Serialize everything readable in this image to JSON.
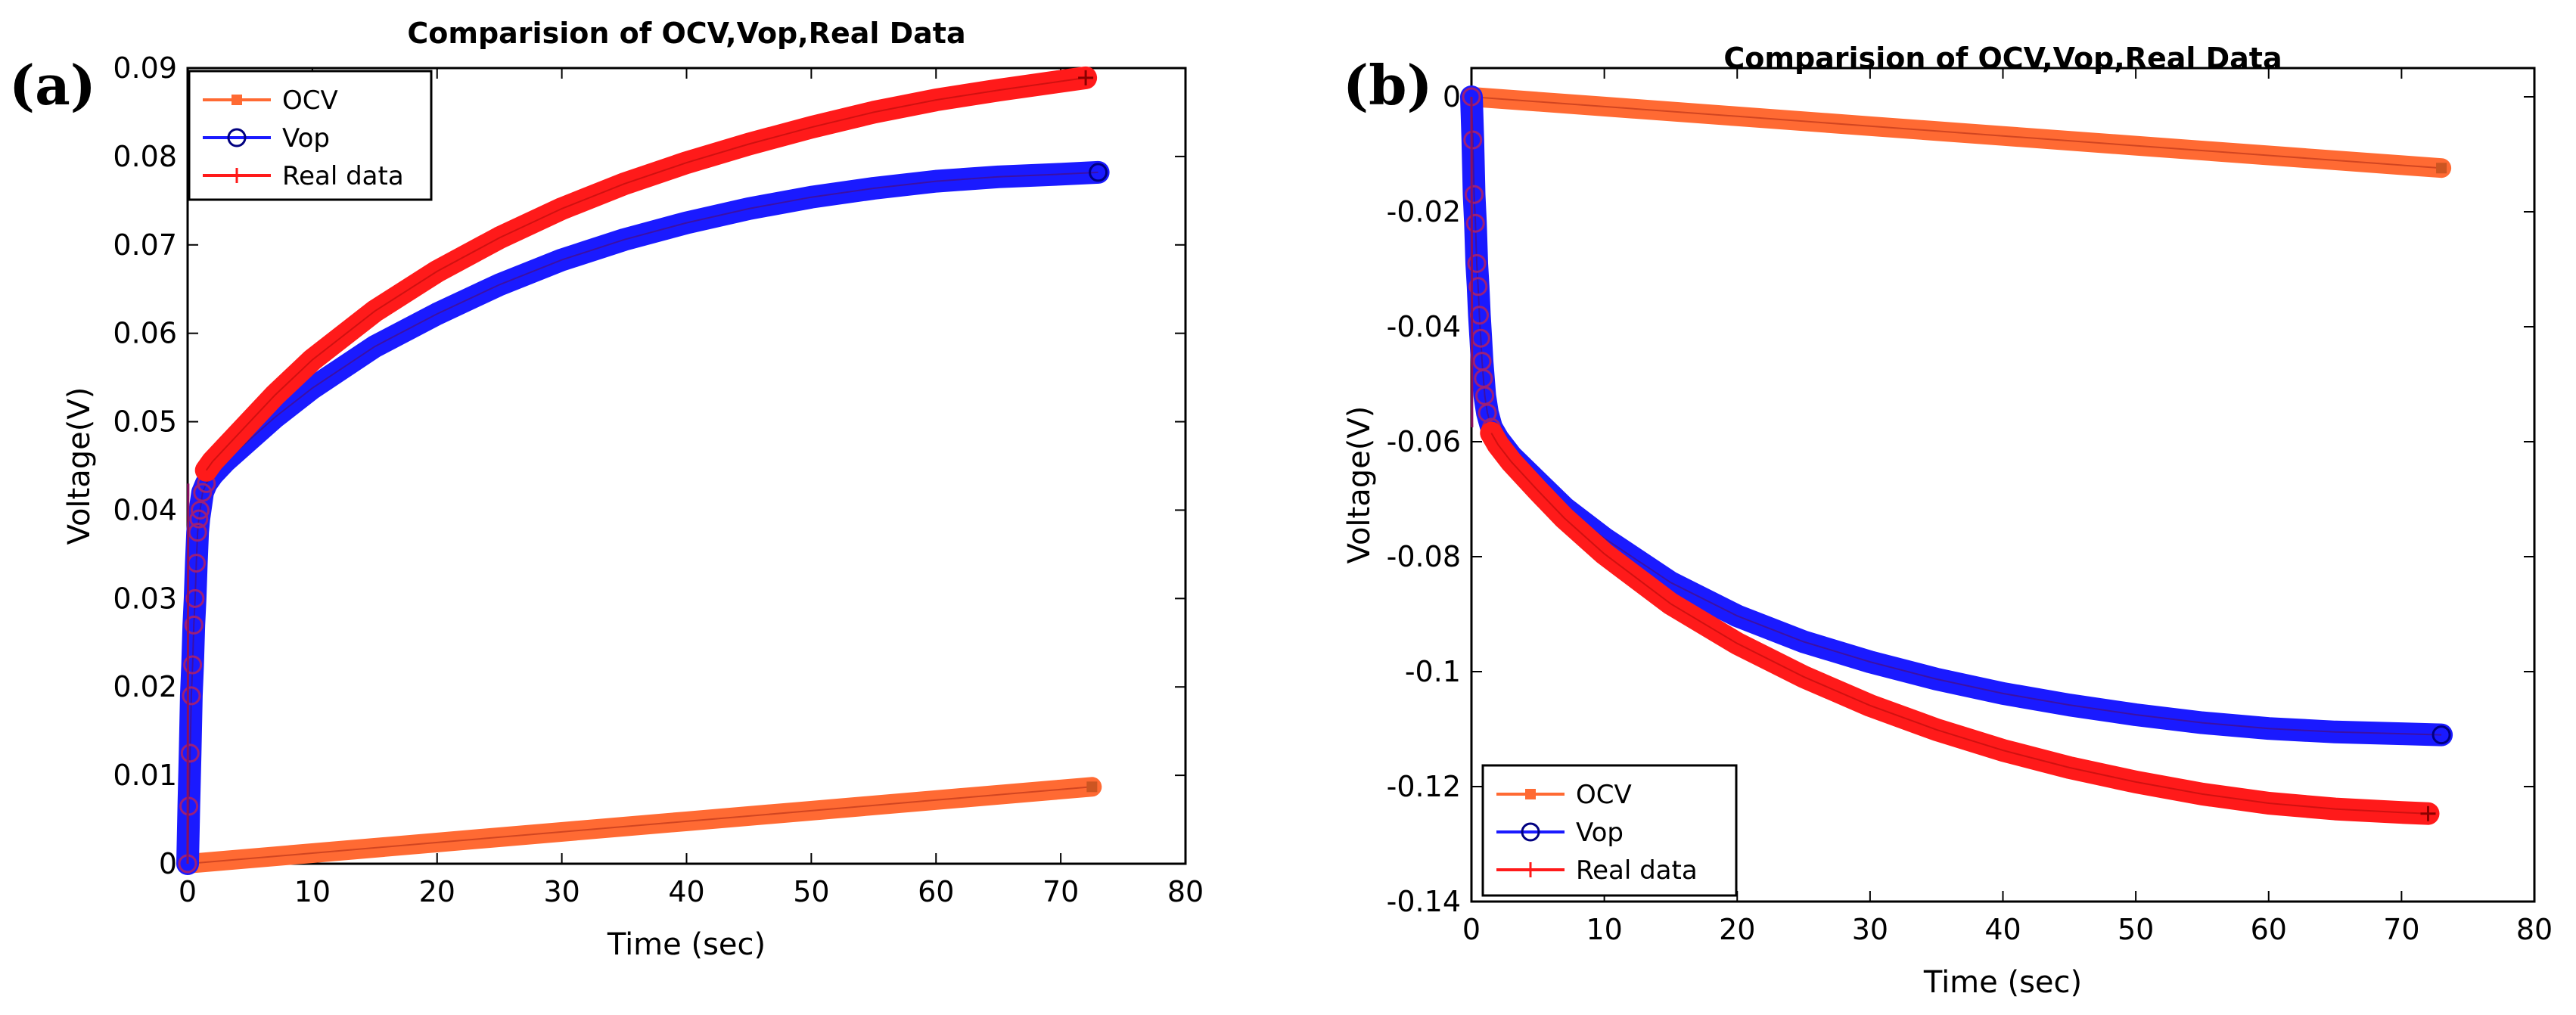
{
  "chart_data": [
    {
      "type": "line",
      "panel_label": "(a)",
      "title": "Comparision of OCV,Vop,Real Data",
      "xlabel": "Time (sec)",
      "ylabel": "Voltage(V)",
      "xlim": [
        0,
        80
      ],
      "ylim": [
        0,
        0.09
      ],
      "xticks": [
        0,
        10,
        20,
        30,
        40,
        50,
        60,
        70,
        80
      ],
      "xtick_labels": [
        "0",
        "10",
        "20",
        "30",
        "40",
        "50",
        "60",
        "70",
        "80"
      ],
      "yticks": [
        0,
        0.01,
        0.02,
        0.03,
        0.04,
        0.05,
        0.06,
        0.07,
        0.08,
        0.09
      ],
      "ytick_labels": [
        "0",
        "0.01",
        "0.02",
        "0.03",
        "0.04",
        "0.05",
        "0.06",
        "0.07",
        "0.08",
        "0.09"
      ],
      "legend_position": "top-left",
      "grid": false,
      "series": [
        {
          "name": "OCV",
          "color": "#ff6a33",
          "marker": "square",
          "x": [
            0,
            10,
            20,
            30,
            40,
            50,
            60,
            70,
            72.5
          ],
          "y": [
            0,
            0.0012,
            0.0024,
            0.0036,
            0.0048,
            0.006,
            0.0072,
            0.0084,
            0.0087
          ]
        },
        {
          "name": "Vop",
          "color": "#1a1aff",
          "marker": "circle",
          "x": [
            0,
            0.1,
            0.2,
            0.3,
            0.4,
            0.5,
            0.6,
            0.7,
            0.8,
            0.9,
            1.0,
            1.2,
            1.5,
            2,
            3,
            5,
            7,
            10,
            15,
            20,
            25,
            30,
            35,
            40,
            45,
            50,
            55,
            60,
            65,
            70,
            73
          ],
          "y": [
            0,
            0.0065,
            0.0125,
            0.019,
            0.0225,
            0.027,
            0.03,
            0.034,
            0.0375,
            0.039,
            0.04,
            0.042,
            0.043,
            0.044,
            0.0455,
            0.048,
            0.0505,
            0.0538,
            0.0585,
            0.0622,
            0.0655,
            0.0683,
            0.0706,
            0.0725,
            0.0741,
            0.0754,
            0.0764,
            0.0772,
            0.0777,
            0.078,
            0.0782
          ]
        },
        {
          "name": "Real data",
          "color": "#ff1a1a",
          "marker": "plus",
          "x": [
            1.5,
            2,
            3,
            5,
            7,
            10,
            15,
            20,
            25,
            30,
            35,
            40,
            45,
            50,
            55,
            60,
            65,
            70,
            72
          ],
          "y": [
            0.0445,
            0.0455,
            0.047,
            0.05,
            0.053,
            0.057,
            0.0625,
            0.067,
            0.0708,
            0.0741,
            0.0769,
            0.0793,
            0.0814,
            0.0833,
            0.085,
            0.0864,
            0.0875,
            0.0885,
            0.0889
          ]
        }
      ]
    },
    {
      "type": "line",
      "panel_label": "(b)",
      "title": "Comparision of OCV,Vop,Real Data",
      "xlabel": "Time (sec)",
      "ylabel": "Voltage(V)",
      "xlim": [
        0,
        80
      ],
      "ylim": [
        -0.14,
        0.005
      ],
      "xticks": [
        0,
        10,
        20,
        30,
        40,
        50,
        60,
        70,
        80
      ],
      "xtick_labels": [
        "0",
        "10",
        "20",
        "30",
        "40",
        "50",
        "60",
        "70",
        "80"
      ],
      "yticks": [
        0,
        -0.02,
        -0.04,
        -0.06,
        -0.08,
        -0.1,
        -0.12,
        -0.14
      ],
      "ytick_labels": [
        "0",
        "-0.02",
        "-0.04",
        "-0.06",
        "-0.08",
        "-0.1",
        "-0.12",
        "-0.14"
      ],
      "legend_position": "bottom-left",
      "grid": false,
      "series": [
        {
          "name": "OCV",
          "color": "#ff6a33",
          "marker": "square",
          "x": [
            0,
            10,
            20,
            30,
            40,
            50,
            60,
            70,
            73
          ],
          "y": [
            0,
            -0.0017,
            -0.0034,
            -0.0051,
            -0.0068,
            -0.0085,
            -0.0102,
            -0.0119,
            -0.0124
          ]
        },
        {
          "name": "Vop",
          "color": "#1a1aff",
          "marker": "circle",
          "x": [
            0,
            0.1,
            0.2,
            0.3,
            0.4,
            0.5,
            0.6,
            0.7,
            0.8,
            0.9,
            1.0,
            1.2,
            1.5,
            2,
            3,
            5,
            7,
            10,
            15,
            20,
            25,
            30,
            35,
            40,
            45,
            50,
            55,
            60,
            65,
            70,
            73
          ],
          "y": [
            0,
            -0.0075,
            -0.017,
            -0.022,
            -0.029,
            -0.033,
            -0.038,
            -0.042,
            -0.046,
            -0.049,
            -0.052,
            -0.055,
            -0.0575,
            -0.0595,
            -0.0625,
            -0.067,
            -0.0715,
            -0.0768,
            -0.0845,
            -0.0903,
            -0.0948,
            -0.0983,
            -0.1013,
            -0.1038,
            -0.1058,
            -0.1075,
            -0.1089,
            -0.1099,
            -0.1105,
            -0.1108,
            -0.111
          ]
        },
        {
          "name": "Real data",
          "color": "#ff1a1a",
          "marker": "plus",
          "x": [
            1.5,
            2,
            3,
            5,
            7,
            10,
            15,
            20,
            25,
            30,
            35,
            40,
            45,
            50,
            55,
            60,
            65,
            70,
            72
          ],
          "y": [
            -0.0585,
            -0.0605,
            -0.0635,
            -0.0685,
            -0.0733,
            -0.0795,
            -0.0882,
            -0.0951,
            -0.1009,
            -0.1059,
            -0.1101,
            -0.1137,
            -0.1167,
            -0.1192,
            -0.1213,
            -0.1229,
            -0.1239,
            -0.1245,
            -0.1247
          ]
        }
      ]
    }
  ]
}
